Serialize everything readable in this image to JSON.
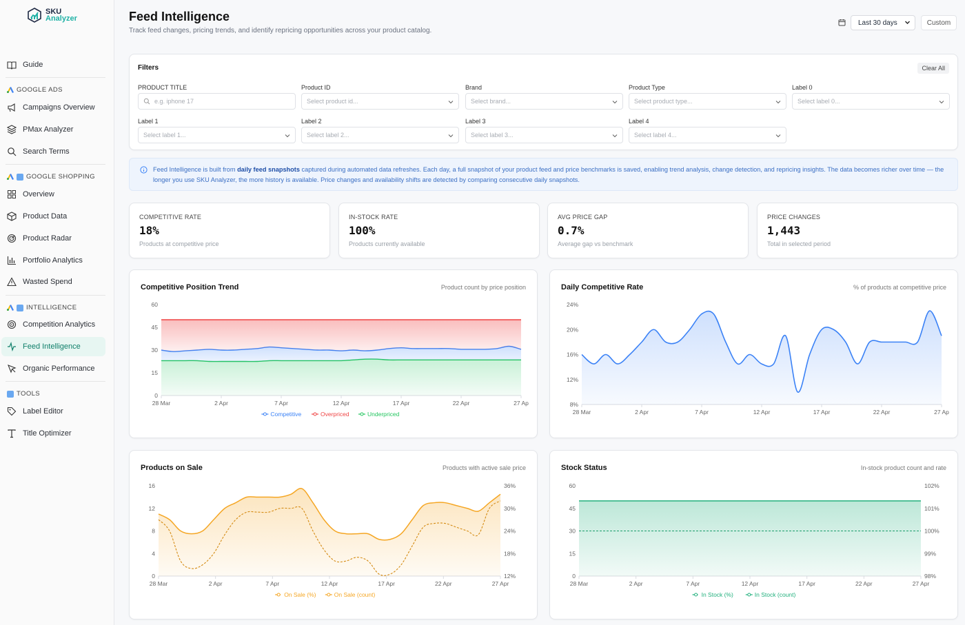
{
  "brand": {
    "line1": "SKU",
    "line2": "Analyzer"
  },
  "sidebar": {
    "guide": "Guide",
    "sections": [
      {
        "title": "GOOGLE ADS",
        "items": [
          "Campaigns Overview",
          "PMax Analyzer",
          "Search Terms"
        ]
      },
      {
        "title": "GOOGLE SHOPPING",
        "items": [
          "Overview",
          "Product Data",
          "Product Radar",
          "Portfolio Analytics",
          "Wasted Spend"
        ]
      },
      {
        "title": "INTELLIGENCE",
        "items": [
          "Competition Analytics",
          "Feed Intelligence",
          "Organic Performance"
        ]
      },
      {
        "title": "TOOLS",
        "items": [
          "Label Editor",
          "Title Optimizer"
        ]
      }
    ],
    "active_item": "Feed Intelligence"
  },
  "header": {
    "title": "Feed Intelligence",
    "subtitle": "Track feed changes, pricing trends, and identify repricing opportunities across your product catalog.",
    "date_range": "Last 30 days",
    "custom_label": "Custom"
  },
  "filters": {
    "title": "Filters",
    "clear_all": "Clear All",
    "fields": [
      {
        "label": "PRODUCT TITLE",
        "placeholder": "e.g. iphone 17"
      },
      {
        "label": "Product ID",
        "placeholder": "Select product id..."
      },
      {
        "label": "Brand",
        "placeholder": "Select brand..."
      },
      {
        "label": "Product Type",
        "placeholder": "Select product type..."
      },
      {
        "label": "Label 0",
        "placeholder": "Select label 0..."
      },
      {
        "label": "Label 1",
        "placeholder": "Select label 1..."
      },
      {
        "label": "Label 2",
        "placeholder": "Select label 2..."
      },
      {
        "label": "Label 3",
        "placeholder": "Select label 3..."
      },
      {
        "label": "Label 4",
        "placeholder": "Select label 4..."
      }
    ]
  },
  "info": {
    "prefix": "Feed Intelligence is built from ",
    "highlight": "daily feed snapshots",
    "suffix": " captured during automated data refreshes. Each day, a full snapshot of your product feed and price benchmarks is saved, enabling trend analysis, change detection, and repricing insights. The data becomes richer over time — the longer you use SKU Analyzer, the more history is available. Price changes and availability shifts are detected by comparing consecutive daily snapshots."
  },
  "kpis": [
    {
      "label": "COMPETITIVE RATE",
      "value": "18%",
      "sub": "Products at competitive price"
    },
    {
      "label": "IN-STOCK RATE",
      "value": "100%",
      "sub": "Products currently available"
    },
    {
      "label": "AVG PRICE GAP",
      "value": "0.7%",
      "sub": "Average gap vs benchmark"
    },
    {
      "label": "PRICE CHANGES",
      "value": "1,443",
      "sub": "Total in selected period"
    }
  ],
  "colors": {
    "accent": "#0f9d7a",
    "competitive": "#3b82f6",
    "overpriced": "#ef4444",
    "underpriced": "#22c55e",
    "on_sale": "#f5a623",
    "in_stock": "#22b07d"
  },
  "chart_data": [
    {
      "type": "area",
      "title": "Competitive Position Trend",
      "subtitle": "Product count by price position",
      "x_tick_labels": [
        "28 Mar",
        "2 Apr",
        "7 Apr",
        "12 Apr",
        "17 Apr",
        "22 Apr",
        "27 Ap"
      ],
      "y_tick_labels": [
        "0",
        "15",
        "30",
        "45",
        "60"
      ],
      "ylim": [
        0,
        60
      ],
      "stacked": true,
      "legend": [
        "Competitive",
        "Overpriced",
        "Underpriced"
      ],
      "series": [
        {
          "name": "Underpriced",
          "values": [
            23,
            23,
            23,
            23,
            22.5,
            22.5,
            22.5,
            22.5,
            22.5,
            23,
            23,
            23,
            23,
            23,
            23,
            23,
            23.5,
            24,
            24,
            23.5,
            23.5,
            23.5,
            23.5,
            23.5,
            23.5,
            23.5,
            23.5,
            23.5,
            23.5,
            23.5,
            23.5
          ]
        },
        {
          "name": "Competitive",
          "values": [
            7,
            6,
            6.5,
            7,
            8,
            7.5,
            7.5,
            8,
            8.5,
            9,
            8.5,
            8,
            7.5,
            7,
            7,
            6.5,
            6.5,
            5.5,
            6,
            7.5,
            8,
            7.5,
            7.5,
            7.5,
            7.5,
            7,
            7,
            7,
            7.5,
            9,
            7
          ]
        },
        {
          "name": "Overpriced",
          "values": [
            20,
            21,
            20.5,
            20,
            19.5,
            20,
            20,
            19.5,
            19,
            18,
            18.5,
            19,
            19.5,
            20,
            20,
            20.5,
            20,
            20.5,
            20,
            19,
            18.5,
            19,
            19,
            19,
            19,
            19.5,
            19.5,
            19.5,
            19,
            17.5,
            19.5
          ]
        }
      ]
    },
    {
      "type": "area",
      "title": "Daily Competitive Rate",
      "subtitle": "% of products at competitive price",
      "x_tick_labels": [
        "28 Mar",
        "2 Apr",
        "7 Apr",
        "12 Apr",
        "17 Apr",
        "22 Apr",
        "27 Ap"
      ],
      "y_tick_labels": [
        "8%",
        "12%",
        "16%",
        "20%",
        "24%"
      ],
      "ylim": [
        8,
        24
      ],
      "series": [
        {
          "name": "Competitive rate",
          "values": [
            16,
            14.5,
            16,
            14.5,
            16,
            18,
            20,
            18,
            18,
            20,
            22.5,
            22.5,
            18,
            14.5,
            16,
            14.5,
            14.5,
            19,
            10,
            16,
            20,
            20,
            18,
            14.5,
            18,
            18,
            18,
            18,
            18,
            23,
            19
          ]
        }
      ]
    },
    {
      "type": "line",
      "title": "Products on Sale",
      "subtitle": "Products with active sale price",
      "x_tick_labels": [
        "28 Mar",
        "2 Apr",
        "7 Apr",
        "12 Apr",
        "17 Apr",
        "22 Apr",
        "27 Apr"
      ],
      "y_tick_labels": [
        "0",
        "4",
        "8",
        "12",
        "16"
      ],
      "y2_tick_labels": [
        "12%",
        "18%",
        "24%",
        "30%",
        "36%"
      ],
      "ylim": [
        0,
        16
      ],
      "y2lim": [
        12,
        36
      ],
      "legend": [
        "On Sale (%)",
        "On Sale (count)"
      ],
      "series": [
        {
          "name": "On Sale (%)",
          "axis": "right",
          "values": [
            27,
            24,
            16,
            14,
            15,
            18,
            23,
            27,
            29,
            29,
            29,
            30,
            30,
            30,
            24,
            19,
            16,
            16,
            17,
            16,
            12.5,
            12.5,
            15,
            20,
            25,
            26,
            26,
            25,
            24,
            23,
            30,
            32
          ]
        },
        {
          "name": "On Sale (count)",
          "axis": "left",
          "values": [
            11,
            10,
            8,
            7.5,
            8,
            10,
            12,
            13,
            14,
            14,
            14,
            14,
            14.5,
            15.5,
            13,
            10,
            8,
            7.5,
            7.5,
            7.5,
            6.5,
            6.5,
            7.5,
            10,
            12.5,
            13,
            13,
            12.5,
            12,
            11.5,
            13,
            14.5
          ]
        }
      ]
    },
    {
      "type": "area",
      "title": "Stock Status",
      "subtitle": "In-stock product count and rate",
      "x_tick_labels": [
        "28 Mar",
        "2 Apr",
        "7 Apr",
        "12 Apr",
        "17 Apr",
        "22 Apr",
        "27 Apr"
      ],
      "y_tick_labels": [
        "0",
        "15",
        "30",
        "45",
        "60"
      ],
      "y2_tick_labels": [
        "98%",
        "99%",
        "100%",
        "101%",
        "102%"
      ],
      "ylim": [
        0,
        60
      ],
      "y2lim": [
        98,
        102
      ],
      "legend": [
        "In Stock (%)",
        "In Stock (count)"
      ],
      "series": [
        {
          "name": "In Stock (count)",
          "axis": "left",
          "values": [
            50,
            50,
            50,
            50,
            50,
            50,
            50,
            50,
            50,
            50,
            50,
            50,
            50,
            50,
            50,
            50,
            50,
            50,
            50,
            50,
            50,
            50,
            50,
            50,
            50,
            50,
            50,
            50,
            50,
            50,
            50
          ]
        },
        {
          "name": "In Stock (%)",
          "axis": "right",
          "values": [
            100,
            100,
            100,
            100,
            100,
            100,
            100,
            100,
            100,
            100,
            100,
            100,
            100,
            100,
            100,
            100,
            100,
            100,
            100,
            100,
            100,
            100,
            100,
            100,
            100,
            100,
            100,
            100,
            100,
            100,
            100
          ]
        }
      ]
    }
  ]
}
